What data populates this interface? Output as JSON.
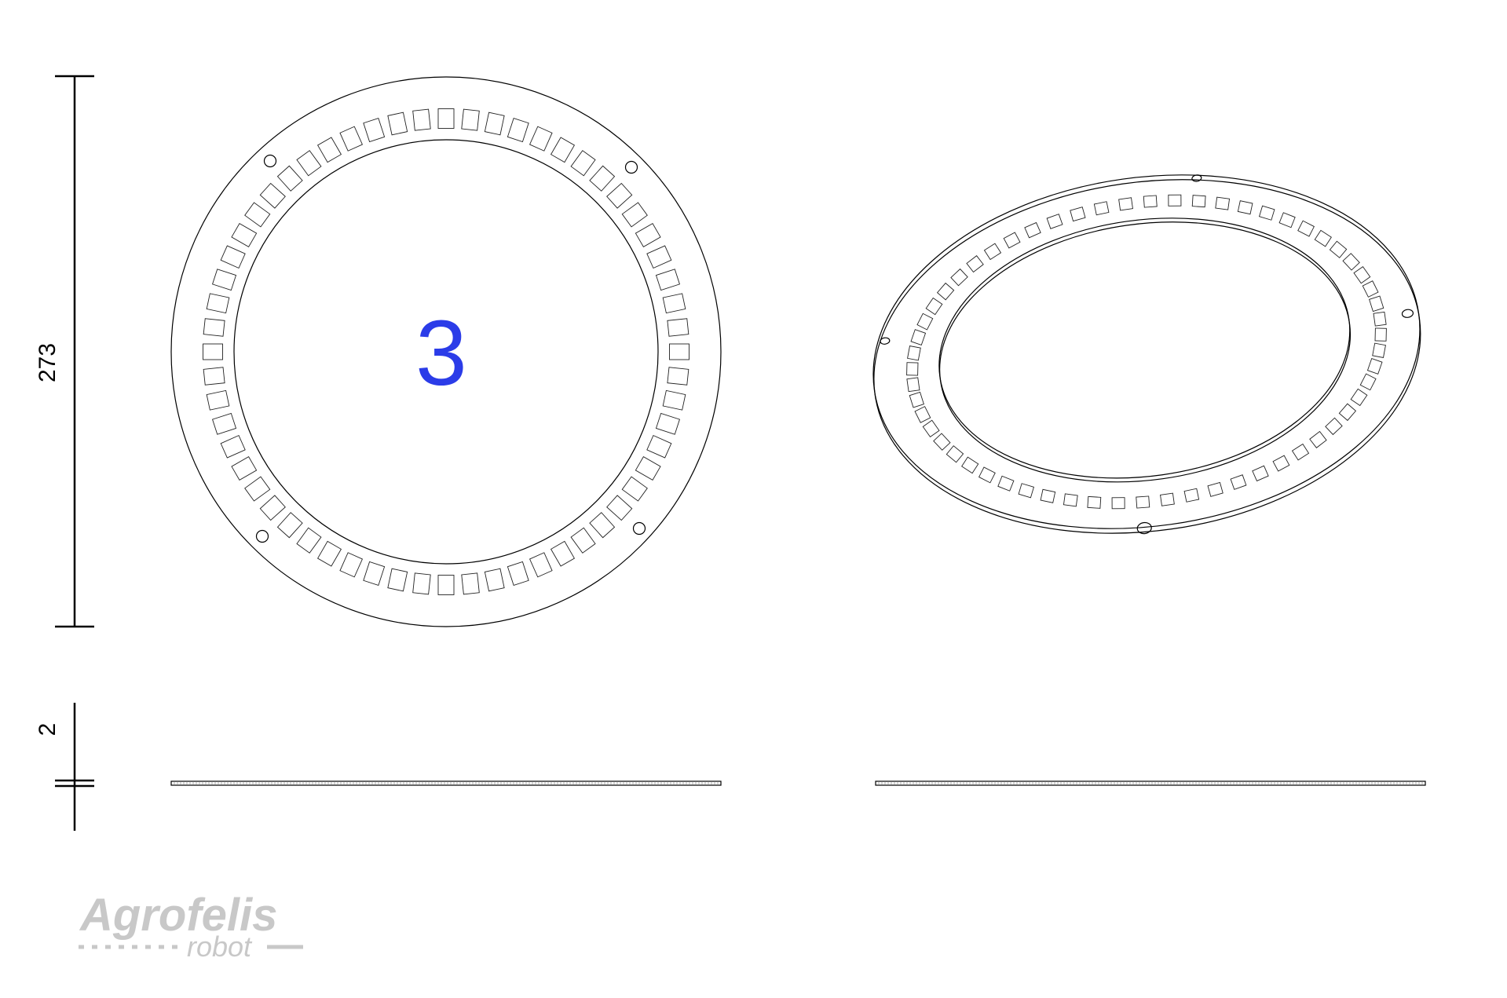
{
  "dimensions": {
    "diameter_label": "273",
    "thickness_label": "2"
  },
  "part": {
    "number_label": "3",
    "number_color": "#2b3ce8",
    "slot_count": 60,
    "mounting_hole_count": 4
  },
  "views": [
    {
      "name": "top-view"
    },
    {
      "name": "isometric-view"
    },
    {
      "name": "side-view-left"
    },
    {
      "name": "side-view-right"
    }
  ],
  "logo": {
    "brand": "Agrofelis",
    "tagline": "robot",
    "color": "#c8c8c8"
  }
}
